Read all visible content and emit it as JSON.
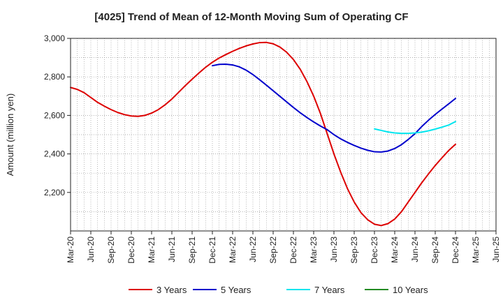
{
  "chart_data": {
    "type": "line",
    "title": "[4025]  Trend of Mean of 12-Month Moving Sum of Operating CF",
    "xlabel": "",
    "ylabel": "Amount (million yen)",
    "ylim": [
      2000,
      3000
    ],
    "yticks": [
      2200,
      2400,
      2600,
      2800,
      3000
    ],
    "ytick_labels": [
      "2,200",
      "2,400",
      "2,600",
      "2,800",
      "3,000"
    ],
    "grid": true,
    "legend_position": "bottom",
    "categories": [
      "Mar-20",
      "Jun-20",
      "Sep-20",
      "Dec-20",
      "Mar-21",
      "Jun-21",
      "Sep-21",
      "Dec-21",
      "Mar-22",
      "Jun-22",
      "Sep-22",
      "Dec-22",
      "Mar-23",
      "Jun-23",
      "Sep-23",
      "Dec-23",
      "Mar-24",
      "Jun-24",
      "Sep-24",
      "Dec-24",
      "Mar-25",
      "Jun-25"
    ],
    "series": [
      {
        "name": "3 Years",
        "color": "#dd0000",
        "x": [
          0,
          1,
          2,
          3,
          4,
          5,
          6,
          7,
          8,
          9,
          10,
          11,
          12,
          13,
          14,
          15,
          16,
          17,
          18,
          19,
          20,
          21,
          22,
          23,
          24,
          25,
          26,
          27,
          28,
          29,
          30,
          31,
          32,
          33,
          34,
          35,
          36,
          37,
          38,
          39,
          40,
          41,
          42,
          43,
          44,
          45,
          46,
          47,
          48,
          49,
          50,
          51,
          52,
          53,
          54,
          55,
          56,
          57
        ],
        "values": [
          2745,
          2735,
          2718,
          2693,
          2668,
          2648,
          2630,
          2615,
          2604,
          2597,
          2595,
          2600,
          2612,
          2630,
          2655,
          2685,
          2720,
          2755,
          2788,
          2820,
          2850,
          2876,
          2898,
          2916,
          2933,
          2948,
          2961,
          2971,
          2978,
          2979,
          2972,
          2955,
          2928,
          2890,
          2840,
          2776,
          2700,
          2610,
          2505,
          2400,
          2305,
          2220,
          2150,
          2095,
          2058,
          2035,
          2028,
          2038,
          2062,
          2100,
          2150,
          2200,
          2250,
          2296,
          2340,
          2380,
          2418,
          2450
        ]
      },
      {
        "name": "5 Years",
        "color": "#0000cc",
        "x": [
          21,
          22,
          23,
          24,
          25,
          26,
          27,
          28,
          29,
          30,
          31,
          32,
          33,
          34,
          35,
          36,
          37,
          38,
          39,
          40,
          41,
          42,
          43,
          44,
          45,
          46,
          47,
          48,
          49,
          50,
          51,
          52,
          53,
          54,
          55,
          56,
          57
        ],
        "values": [
          2858,
          2865,
          2866,
          2862,
          2852,
          2835,
          2812,
          2785,
          2757,
          2728,
          2699,
          2670,
          2641,
          2614,
          2589,
          2566,
          2545,
          2526,
          2500,
          2478,
          2460,
          2444,
          2430,
          2419,
          2411,
          2410,
          2415,
          2428,
          2448,
          2475,
          2505,
          2542,
          2575,
          2605,
          2633,
          2660,
          2688
        ]
      },
      {
        "name": "7 Years",
        "color": "#00e5ee",
        "x": [
          45,
          46,
          47,
          48,
          49,
          50,
          51,
          52,
          53,
          54,
          55,
          56,
          57
        ],
        "values": [
          2530,
          2522,
          2514,
          2509,
          2507,
          2507,
          2509,
          2513,
          2520,
          2529,
          2539,
          2550,
          2568
        ]
      },
      {
        "name": "10 Years",
        "color": "#228b22",
        "x": [],
        "values": []
      }
    ]
  }
}
